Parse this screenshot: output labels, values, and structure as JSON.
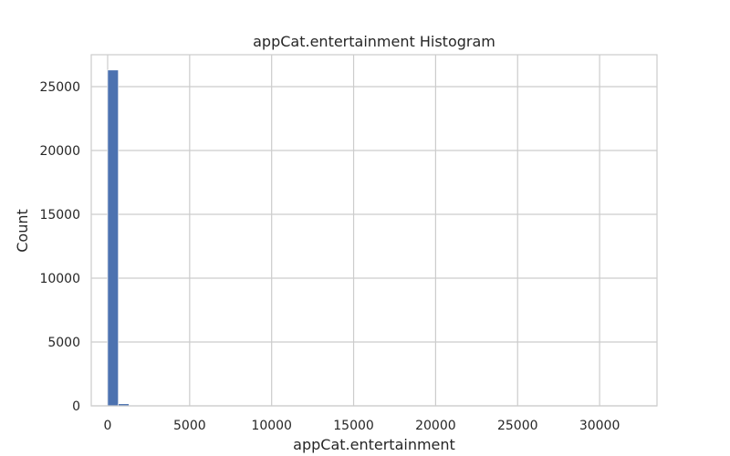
{
  "chart_data": {
    "type": "bar",
    "title": "appCat.entertainment Histogram",
    "xlabel": "appCat.entertainment",
    "ylabel": "Count",
    "xlim": [
      -1000,
      33500
    ],
    "ylim": [
      0,
      27500
    ],
    "xticks": [
      0,
      5000,
      10000,
      15000,
      20000,
      25000,
      30000
    ],
    "yticks": [
      0,
      5000,
      10000,
      15000,
      20000,
      25000
    ],
    "bin_width": 650,
    "bins": [
      {
        "x0": 0,
        "x1": 650,
        "count": 26300
      },
      {
        "x0": 650,
        "x1": 1300,
        "count": 160
      },
      {
        "x0": 1300,
        "x1": 1950,
        "count": 40
      },
      {
        "x0": 1950,
        "x1": 2600,
        "count": 15
      },
      {
        "x0": 2600,
        "x1": 3250,
        "count": 8
      },
      {
        "x0": 3250,
        "x1": 3900,
        "count": 5
      }
    ],
    "grid": true,
    "bar_color": "#4c72b0"
  }
}
